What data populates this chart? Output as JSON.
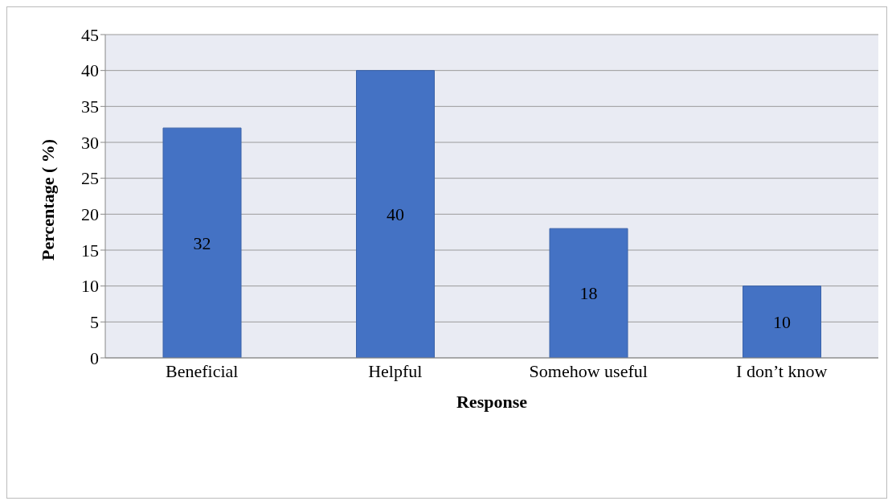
{
  "chart_data": {
    "type": "bar",
    "xlabel": "Response",
    "ylabel": "Percentage ( %)",
    "categories": [
      "Beneficial",
      "Helpful",
      "Somehow useful",
      "I  don’t know"
    ],
    "values": [
      32,
      40,
      18,
      10
    ],
    "color": "#4472c4",
    "ylim": [
      0,
      45
    ],
    "yticks": [
      0,
      5,
      10,
      15,
      20,
      25,
      30,
      35,
      40,
      45
    ],
    "grid": "y",
    "data_labels": true
  }
}
